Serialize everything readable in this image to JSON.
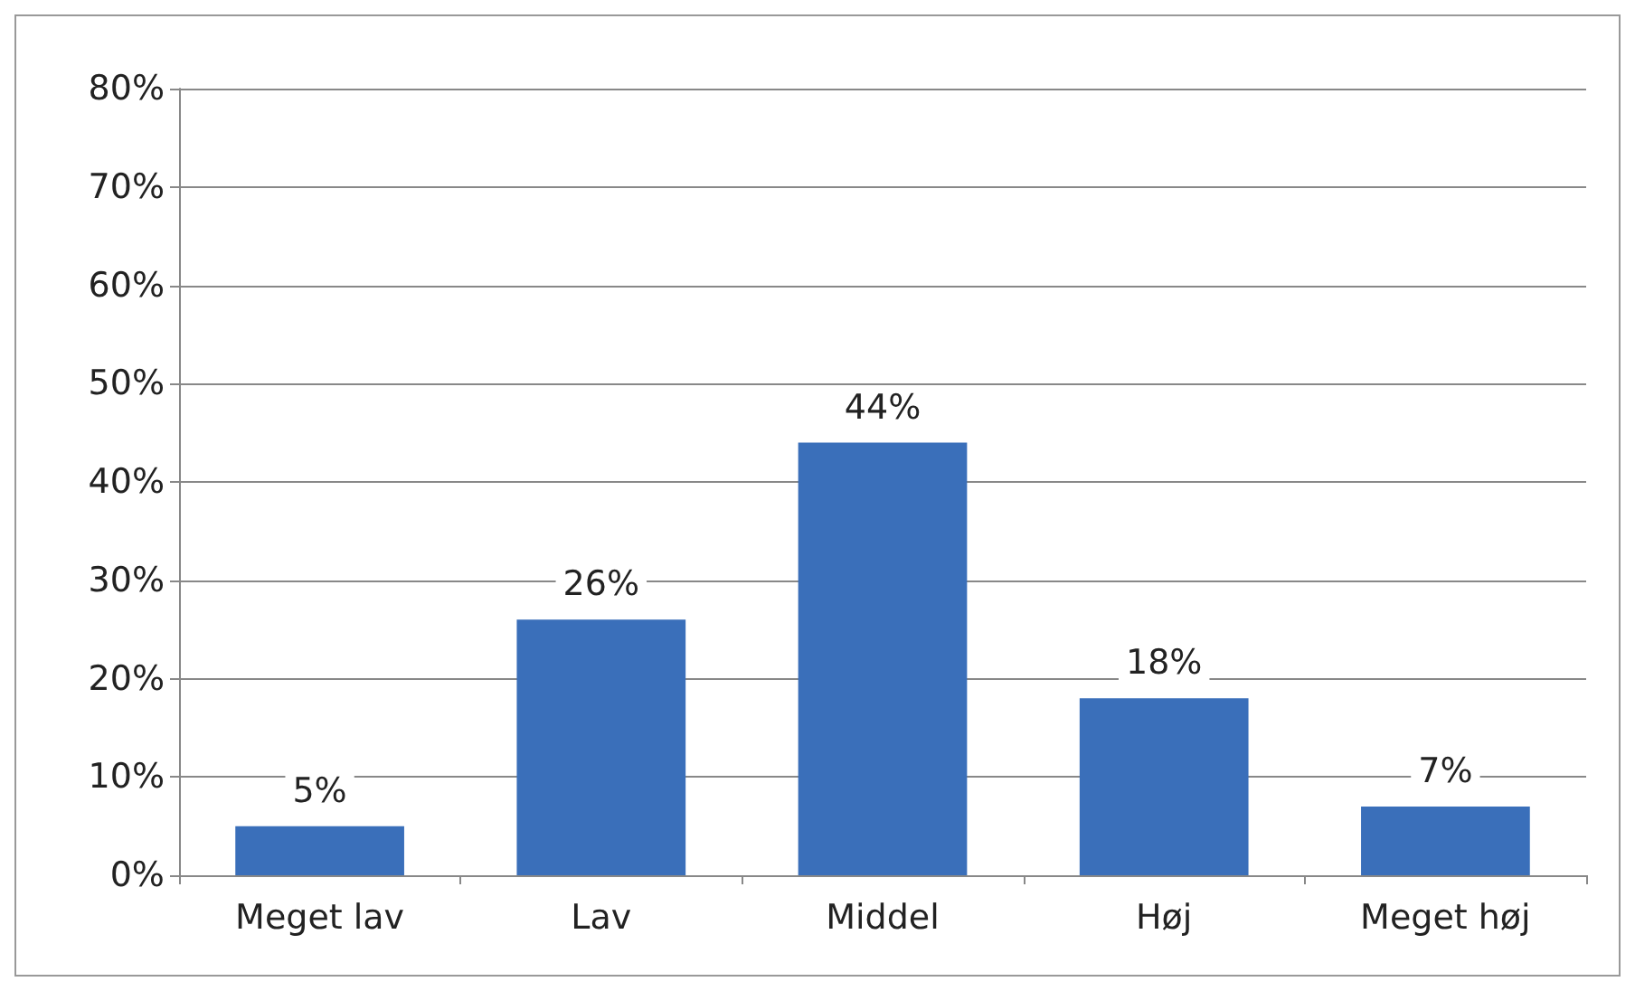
{
  "chart_data": {
    "type": "bar",
    "categories": [
      "Meget lav",
      "Lav",
      "Middel",
      "Høj",
      "Meget høj"
    ],
    "values": [
      5,
      26,
      44,
      18,
      7
    ],
    "value_labels": [
      "5%",
      "26%",
      "44%",
      "18%",
      "7%"
    ],
    "color": "#3a6fba",
    "ylim": [
      0,
      80
    ],
    "yticks": [
      {
        "value": 0,
        "label": "0%"
      },
      {
        "value": 10,
        "label": "10%"
      },
      {
        "value": 20,
        "label": "20%"
      },
      {
        "value": 30,
        "label": "30%"
      },
      {
        "value": 40,
        "label": "40%"
      },
      {
        "value": 50,
        "label": "50%"
      },
      {
        "value": 60,
        "label": "60%"
      },
      {
        "value": 70,
        "label": "70%"
      },
      {
        "value": 80,
        "label": "80%"
      }
    ],
    "grid": "y"
  }
}
